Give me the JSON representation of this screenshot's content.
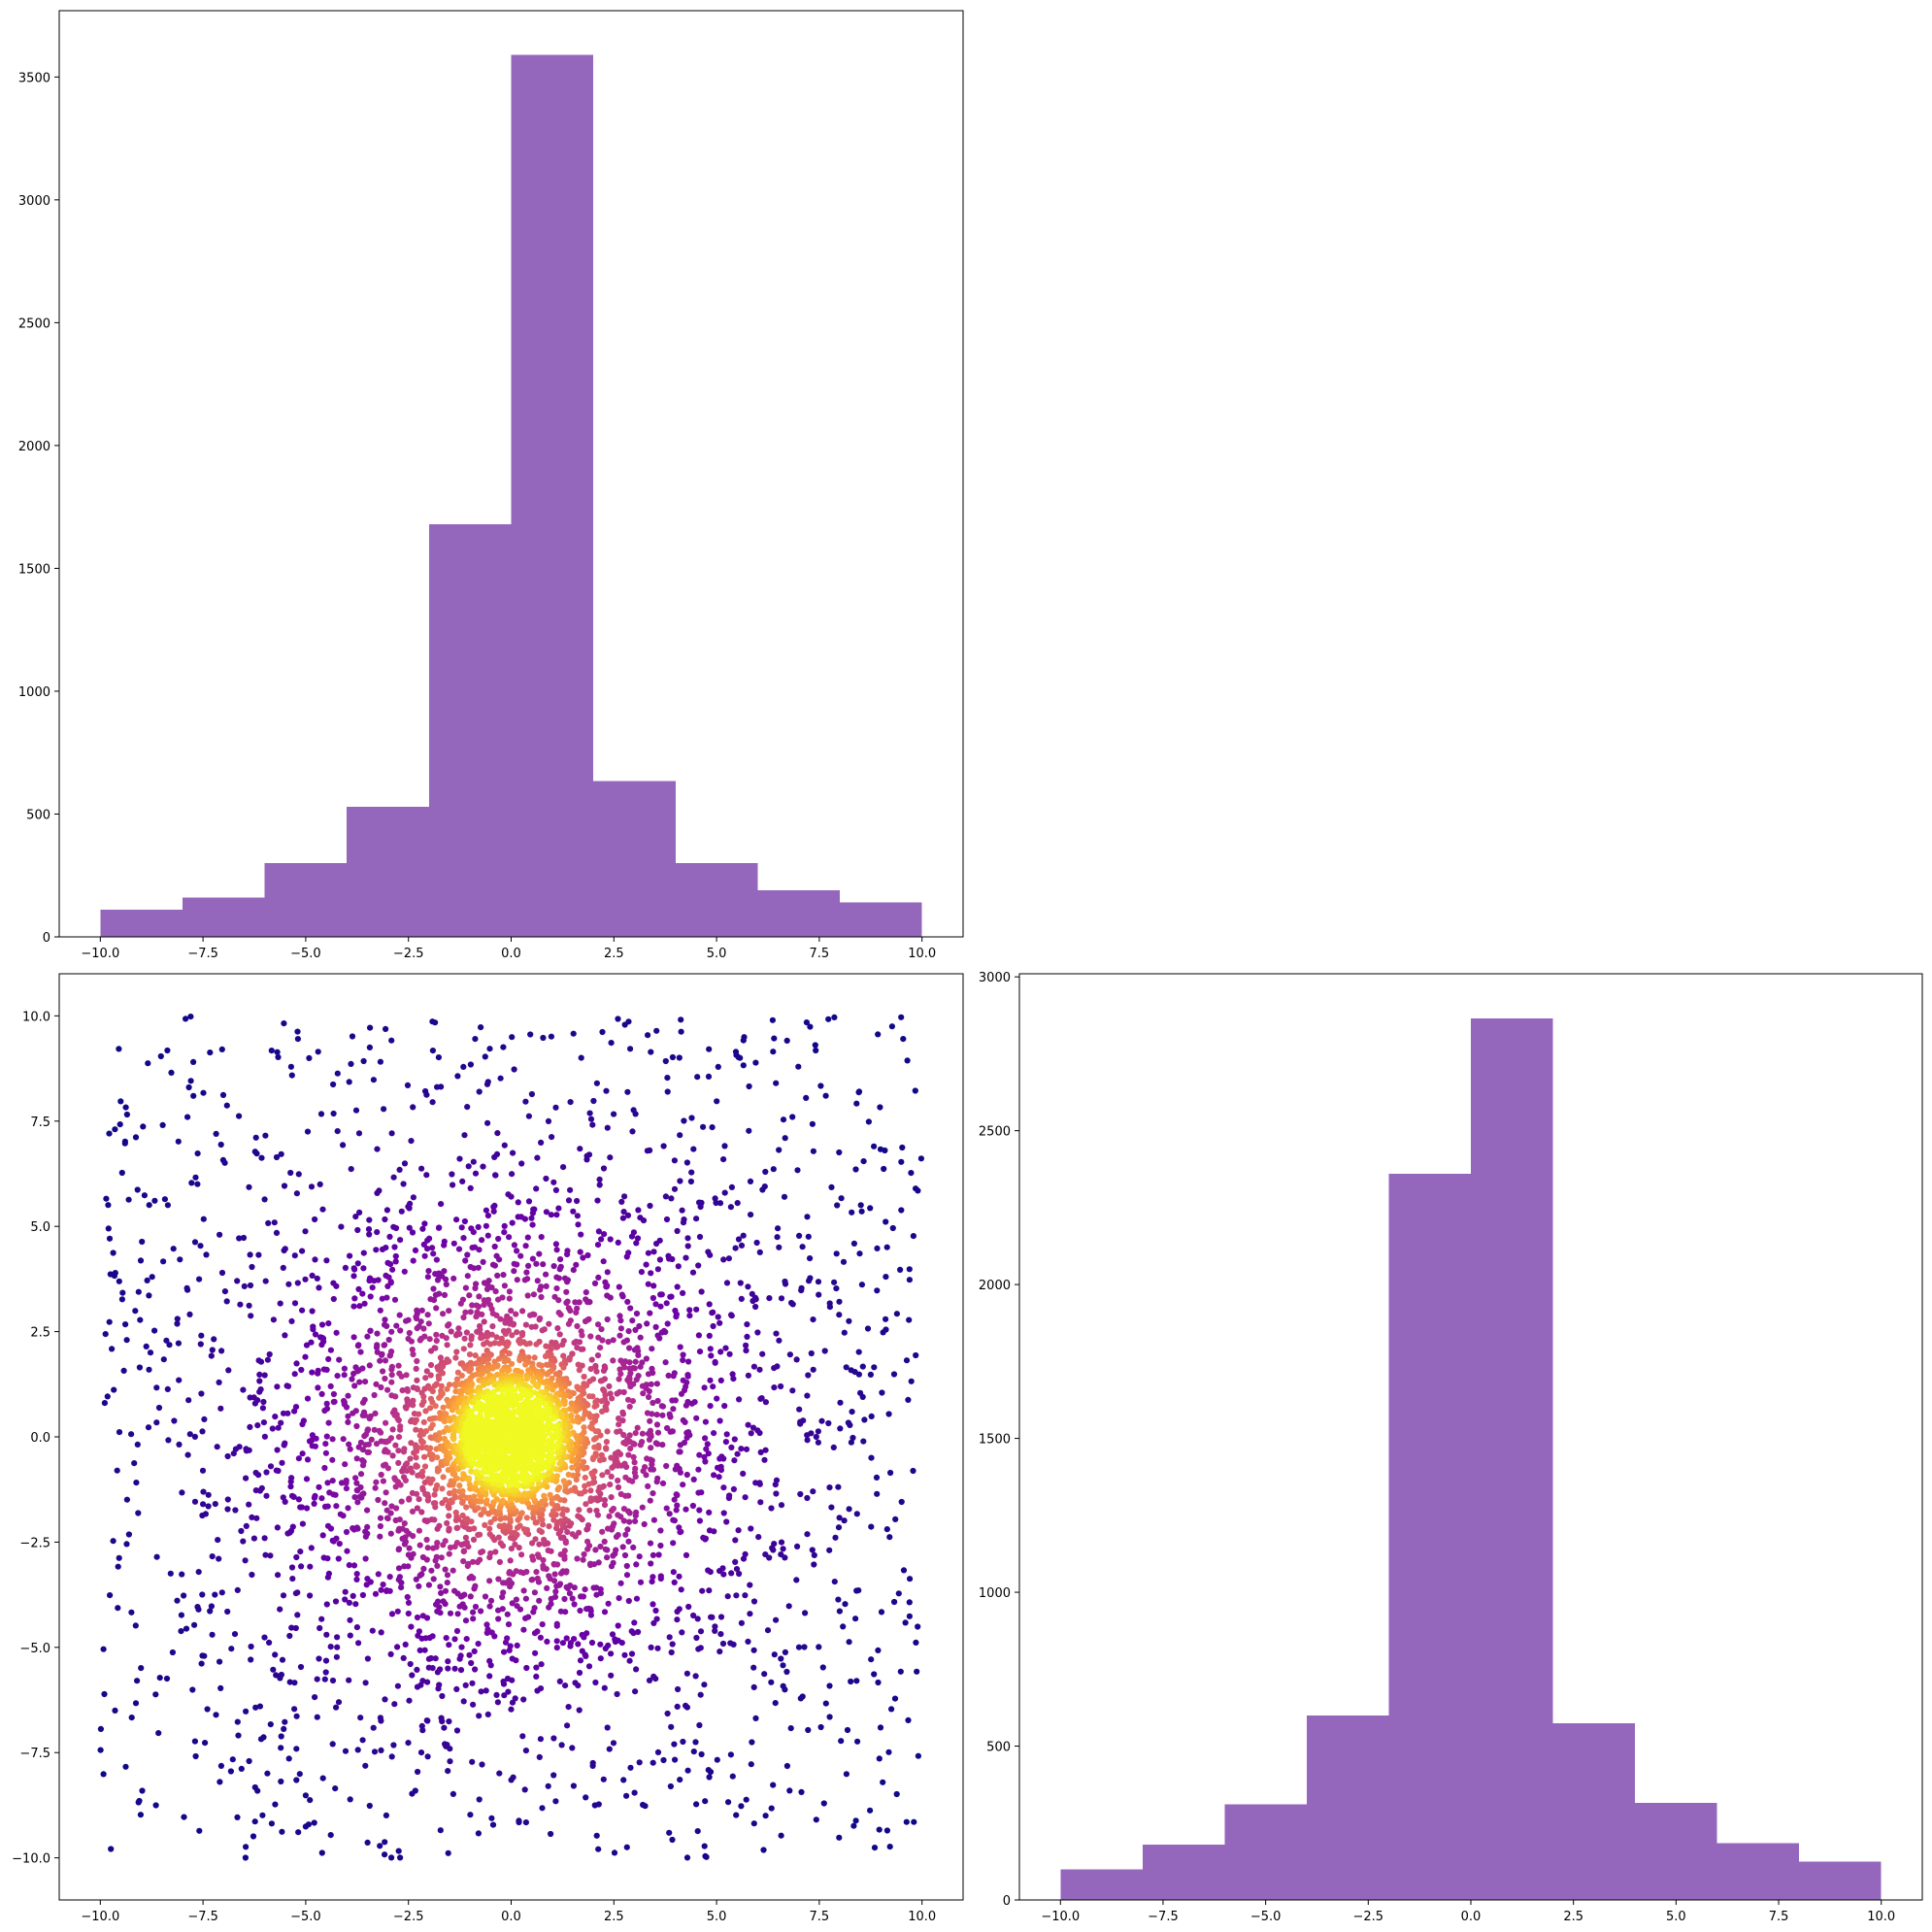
{
  "chart_data": [
    {
      "panel": "top-left",
      "type": "bar",
      "subtype": "histogram",
      "bin_edges": [
        -10,
        -8,
        -6,
        -4,
        -2,
        0,
        2,
        4,
        6,
        8,
        10
      ],
      "values": [
        110,
        160,
        300,
        530,
        1680,
        3590,
        635,
        300,
        190,
        140
      ],
      "xlim": [
        -11,
        11
      ],
      "ylim": [
        0,
        3770
      ],
      "xticks": [
        -10,
        -7.5,
        -5,
        -2.5,
        0,
        2.5,
        5,
        7.5,
        10
      ],
      "xtick_labels": [
        "−10.0",
        "−7.5",
        "−5.0",
        "−2.5",
        "0.0",
        "2.5",
        "5.0",
        "7.5",
        "10.0"
      ],
      "yticks": [
        0,
        500,
        1000,
        1500,
        2000,
        2500,
        3000,
        3500
      ],
      "ytick_labels": [
        "0",
        "500",
        "1000",
        "1500",
        "2000",
        "2500",
        "3000",
        "3500"
      ],
      "color": "#9467bd",
      "title": "",
      "xlabel": "",
      "ylabel": ""
    },
    {
      "panel": "bottom-left",
      "type": "scatter",
      "description_of_data": "about 5000 points spread over the square -10..10, dense near the origin, colored by density",
      "n_points": 5000,
      "x_range": [
        -10,
        10
      ],
      "y_range": [
        -10,
        10
      ],
      "center": [
        0,
        0
      ],
      "xlim": [
        -11,
        11
      ],
      "ylim": [
        -11,
        11
      ],
      "xticks": [
        -10,
        -7.5,
        -5,
        -2.5,
        0,
        2.5,
        5,
        7.5,
        10
      ],
      "xtick_labels": [
        "−10.0",
        "−7.5",
        "−5.0",
        "−2.5",
        "0.0",
        "2.5",
        "5.0",
        "7.5",
        "10.0"
      ],
      "yticks": [
        -10,
        -7.5,
        -5,
        -2.5,
        0,
        2.5,
        5,
        7.5,
        10
      ],
      "ytick_labels": [
        "−10.0",
        "−7.5",
        "−5.0",
        "−2.5",
        "0.0",
        "2.5",
        "5.0",
        "7.5",
        "10.0"
      ],
      "colormap": "plasma",
      "colormap_stops": [
        "#0d0887",
        "#6a00a8",
        "#b12a90",
        "#e16462",
        "#fca636",
        "#f0f921"
      ],
      "title": "",
      "xlabel": "",
      "ylabel": ""
    },
    {
      "panel": "bottom-right",
      "type": "bar",
      "subtype": "histogram",
      "bin_edges": [
        -10,
        -8,
        -6,
        -4,
        -2,
        0,
        2,
        4,
        6,
        8,
        10
      ],
      "values": [
        100,
        180,
        310,
        600,
        2360,
        2865,
        575,
        315,
        185,
        125
      ],
      "xlim": [
        -11,
        11
      ],
      "ylim": [
        0,
        3010
      ],
      "xticks": [
        -10,
        -7.5,
        -5,
        -2.5,
        0,
        2.5,
        5,
        7.5,
        10
      ],
      "xtick_labels": [
        "−10.0",
        "−7.5",
        "−5.0",
        "−2.5",
        "0.0",
        "2.5",
        "5.0",
        "7.5",
        "10.0"
      ],
      "yticks": [
        0,
        500,
        1000,
        1500,
        2000,
        2500,
        3000
      ],
      "ytick_labels": [
        "0",
        "500",
        "1000",
        "1500",
        "2000",
        "2500",
        "3000"
      ],
      "color": "#9467bd",
      "title": "",
      "xlabel": "",
      "ylabel": ""
    }
  ]
}
